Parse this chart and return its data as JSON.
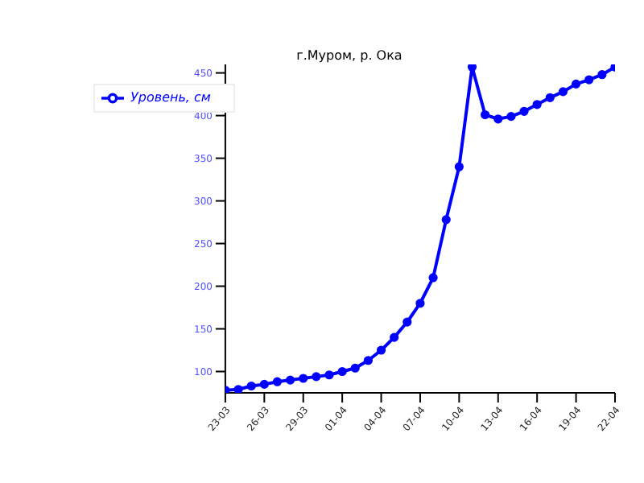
{
  "chart_data": {
    "type": "line",
    "title": "г.Муром, р. Ока",
    "x": [
      "--03-23",
      "--03-24",
      "--03-25",
      "--03-26",
      "--03-27",
      "--03-28",
      "--03-29",
      "--03-30",
      "--03-31",
      "--04-01",
      "--04-02",
      "--04-03",
      "--04-04",
      "--04-05",
      "--04-06",
      "--04-07",
      "--04-08",
      "--04-09",
      "--04-10",
      "--04-11",
      "--04-12",
      "--04-13",
      "--04-14",
      "--04-15",
      "--04-16",
      "--04-17",
      "--04-18",
      "--04-19",
      "--04-20",
      "--04-21",
      "--04-22"
    ],
    "series": [
      {
        "name": "Уровень, см",
        "color": "#0000ff",
        "values": [
          78,
          79,
          83,
          85,
          88,
          90,
          92,
          94,
          96,
          100,
          104,
          113,
          125,
          140,
          158,
          180,
          210,
          278,
          340,
          457,
          401,
          396,
          399,
          405,
          413,
          421,
          428,
          437,
          442,
          448,
          457
        ]
      }
    ],
    "xlim": [
      "--03-23",
      "--04-22"
    ],
    "xticks": [
      {
        "value": "--03-23",
        "label": "23-03"
      },
      {
        "value": "--03-26",
        "label": "26-03"
      },
      {
        "value": "--03-29",
        "label": "29-03"
      },
      {
        "value": "--04-01",
        "label": "01-04"
      },
      {
        "value": "--04-04",
        "label": "04-04"
      },
      {
        "value": "--04-07",
        "label": "07-04"
      },
      {
        "value": "--04-10",
        "label": "10-04"
      },
      {
        "value": "--04-13",
        "label": "13-04"
      },
      {
        "value": "--04-16",
        "label": "16-04"
      },
      {
        "value": "--04-19",
        "label": "19-04"
      },
      {
        "value": "--04-22",
        "label": "22-04"
      }
    ],
    "ylim": [
      75,
      460
    ],
    "yticks": [
      100,
      150,
      200,
      250,
      300,
      350,
      400,
      450
    ],
    "legend": "top left",
    "marker": "circle",
    "line_style": "solid",
    "grid": false
  }
}
